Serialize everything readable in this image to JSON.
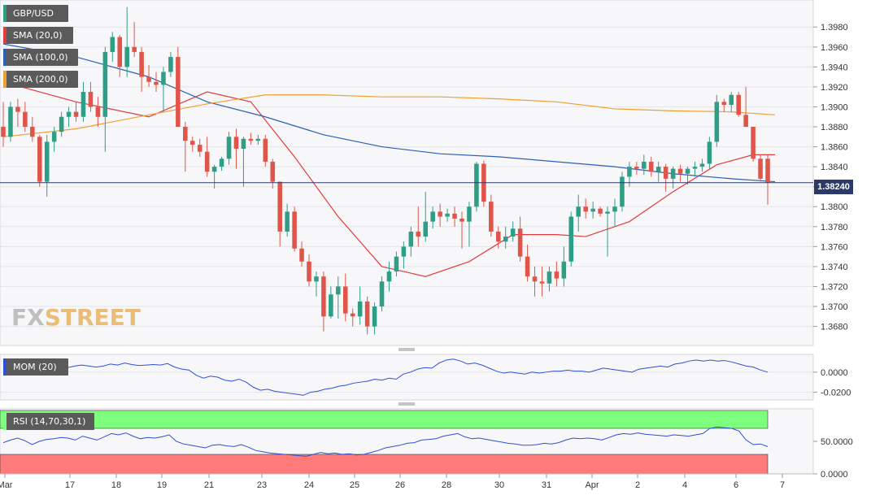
{
  "chart_data": [
    {
      "type": "candlestick",
      "panel": "price",
      "symbol": "GBP/USD",
      "ylim": [
        1.3665,
        1.4003
      ],
      "y_ticks": [
        "1.3680",
        "1.3700",
        "1.3720",
        "1.3740",
        "1.3760",
        "1.3780",
        "1.3800",
        "1.3820",
        "1.3840",
        "1.3860",
        "1.3880",
        "1.3900",
        "1.3920",
        "1.3940",
        "1.3960",
        "1.3980"
      ],
      "x_labels": [
        "Mar",
        "17",
        "18",
        "19",
        "21",
        "23",
        "24",
        "25",
        "26",
        "28",
        "30",
        "31",
        "Apr",
        "2",
        "4",
        "6",
        "7"
      ],
      "last_price_label": "1.38240",
      "last_price": 1.3824,
      "candles": [
        [
          1.388,
          1.3905,
          1.386,
          1.387
        ],
        [
          1.387,
          1.3905,
          1.3865,
          1.39
        ],
        [
          1.39,
          1.3908,
          1.388,
          1.3895
        ],
        [
          1.3895,
          1.3905,
          1.3875,
          1.388
        ],
        [
          1.388,
          1.389,
          1.3865,
          1.387
        ],
        [
          1.387,
          1.3872,
          1.382,
          1.3825
        ],
        [
          1.3825,
          1.3872,
          1.381,
          1.3865
        ],
        [
          1.3865,
          1.388,
          1.3855,
          1.3875
        ],
        [
          1.3875,
          1.3895,
          1.387,
          1.389
        ],
        [
          1.389,
          1.39,
          1.388,
          1.3895
        ],
        [
          1.3895,
          1.3905,
          1.3885,
          1.389
        ],
        [
          1.389,
          1.3925,
          1.3885,
          1.3915
        ],
        [
          1.3915,
          1.3925,
          1.3895,
          1.39
        ],
        [
          1.39,
          1.391,
          1.388,
          1.389
        ],
        [
          1.389,
          1.396,
          1.3855,
          1.3955
        ],
        [
          1.3955,
          1.3975,
          1.3945,
          1.397
        ],
        [
          1.397,
          1.3972,
          1.393,
          1.394
        ],
        [
          1.394,
          1.4,
          1.393,
          1.396
        ],
        [
          1.396,
          1.3985,
          1.395,
          1.3955
        ],
        [
          1.3955,
          1.396,
          1.3915,
          1.393
        ],
        [
          1.393,
          1.3942,
          1.392,
          1.3925
        ],
        [
          1.3925,
          1.3935,
          1.3915,
          1.3922
        ],
        [
          1.3922,
          1.394,
          1.3895,
          1.3935
        ],
        [
          1.3935,
          1.3955,
          1.393,
          1.395
        ],
        [
          1.395,
          1.396,
          1.388,
          1.388
        ],
        [
          1.388,
          1.3885,
          1.3835,
          1.3866
        ],
        [
          1.3866,
          1.387,
          1.3855,
          1.3862
        ],
        [
          1.3862,
          1.3868,
          1.385,
          1.3855
        ],
        [
          1.3855,
          1.387,
          1.383,
          1.3835
        ],
        [
          1.3835,
          1.3842,
          1.3818,
          1.384
        ],
        [
          1.384,
          1.385,
          1.3836,
          1.3848
        ],
        [
          1.3848,
          1.3875,
          1.3842,
          1.387
        ],
        [
          1.387,
          1.3878,
          1.3838,
          1.3858
        ],
        [
          1.3858,
          1.387,
          1.382,
          1.3868
        ],
        [
          1.3868,
          1.3874,
          1.3862,
          1.3866
        ],
        [
          1.3866,
          1.3872,
          1.3862,
          1.3868
        ],
        [
          1.3868,
          1.3872,
          1.384,
          1.3845
        ],
        [
          1.3845,
          1.3848,
          1.3818,
          1.3825
        ],
        [
          1.3825,
          1.3825,
          1.376,
          1.3775
        ],
        [
          1.3775,
          1.3803,
          1.377,
          1.3795
        ],
        [
          1.3795,
          1.38,
          1.3755,
          1.3758
        ],
        [
          1.3758,
          1.3765,
          1.374,
          1.3745
        ],
        [
          1.3745,
          1.3752,
          1.372,
          1.3725
        ],
        [
          1.3725,
          1.3735,
          1.371,
          1.373
        ],
        [
          1.373,
          1.3735,
          1.3675,
          1.369
        ],
        [
          1.369,
          1.372,
          1.3688,
          1.3712
        ],
        [
          1.3712,
          1.373,
          1.3688,
          1.372
        ],
        [
          1.372,
          1.3733,
          1.3685,
          1.3693
        ],
        [
          1.3693,
          1.3698,
          1.368,
          1.369
        ],
        [
          1.369,
          1.372,
          1.3682,
          1.3705
        ],
        [
          1.3705,
          1.371,
          1.3672,
          1.368
        ],
        [
          1.368,
          1.3704,
          1.3672,
          1.37
        ],
        [
          1.37,
          1.373,
          1.3695,
          1.3725
        ],
        [
          1.3725,
          1.3745,
          1.3715,
          1.3735
        ],
        [
          1.3735,
          1.3755,
          1.373,
          1.375
        ],
        [
          1.375,
          1.3765,
          1.3738,
          1.376
        ],
        [
          1.376,
          1.378,
          1.375,
          1.3775
        ],
        [
          1.3775,
          1.38,
          1.376,
          1.377
        ],
        [
          1.377,
          1.3815,
          1.3765,
          1.3785
        ],
        [
          1.3785,
          1.38,
          1.3778,
          1.3795
        ],
        [
          1.3795,
          1.3803,
          1.378,
          1.379
        ],
        [
          1.379,
          1.3798,
          1.3785,
          1.3793
        ],
        [
          1.3793,
          1.38,
          1.378,
          1.3788
        ],
        [
          1.3788,
          1.3795,
          1.3758,
          1.3785
        ],
        [
          1.3785,
          1.3805,
          1.376,
          1.38
        ],
        [
          1.38,
          1.3845,
          1.3795,
          1.3843
        ],
        [
          1.3843,
          1.3846,
          1.38,
          1.3805
        ],
        [
          1.3805,
          1.3812,
          1.377,
          1.3775
        ],
        [
          1.3775,
          1.378,
          1.3758,
          1.3765
        ],
        [
          1.3765,
          1.378,
          1.3758,
          1.377
        ],
        [
          1.377,
          1.3785,
          1.3765,
          1.3778
        ],
        [
          1.3778,
          1.379,
          1.3745,
          1.375
        ],
        [
          1.375,
          1.3762,
          1.3725,
          1.373
        ],
        [
          1.373,
          1.374,
          1.371,
          1.3725
        ],
        [
          1.3725,
          1.374,
          1.371,
          1.3723
        ],
        [
          1.3723,
          1.374,
          1.3715,
          1.3735
        ],
        [
          1.3735,
          1.3745,
          1.372,
          1.3728
        ],
        [
          1.3728,
          1.376,
          1.372,
          1.3745
        ],
        [
          1.3745,
          1.3795,
          1.374,
          1.379
        ],
        [
          1.379,
          1.3812,
          1.3775,
          1.38
        ],
        [
          1.38,
          1.3808,
          1.3788,
          1.3795
        ],
        [
          1.3795,
          1.3805,
          1.3788,
          1.3798
        ],
        [
          1.3798,
          1.38,
          1.379,
          1.3793
        ],
        [
          1.3793,
          1.38,
          1.375,
          1.3795
        ],
        [
          1.3795,
          1.3808,
          1.378,
          1.38
        ],
        [
          1.38,
          1.3835,
          1.3795,
          1.383
        ],
        [
          1.383,
          1.3845,
          1.382,
          1.384
        ],
        [
          1.384,
          1.3845,
          1.3832,
          1.3838
        ],
        [
          1.3838,
          1.3852,
          1.3832,
          1.3845
        ],
        [
          1.3845,
          1.385,
          1.383,
          1.3835
        ],
        [
          1.3835,
          1.3845,
          1.3825,
          1.384
        ],
        [
          1.384,
          1.3843,
          1.3815,
          1.3828
        ],
        [
          1.3828,
          1.384,
          1.3818,
          1.3838
        ],
        [
          1.3838,
          1.3842,
          1.3825,
          1.3833
        ],
        [
          1.3833,
          1.384,
          1.3822,
          1.3838
        ],
        [
          1.3838,
          1.3845,
          1.383,
          1.384
        ],
        [
          1.384,
          1.3848,
          1.3835,
          1.3843
        ],
        [
          1.3843,
          1.387,
          1.3838,
          1.3865
        ],
        [
          1.3865,
          1.3912,
          1.386,
          1.3905
        ],
        [
          1.3905,
          1.3908,
          1.3895,
          1.3902
        ],
        [
          1.3902,
          1.3915,
          1.3895,
          1.3912
        ],
        [
          1.3912,
          1.3915,
          1.389,
          1.3892
        ],
        [
          1.3892,
          1.392,
          1.388,
          1.388
        ],
        [
          1.388,
          1.388,
          1.3845,
          1.3848
        ],
        [
          1.3848,
          1.3852,
          1.3825,
          1.3828
        ],
        [
          1.3848,
          1.3852,
          1.3802,
          1.3824
        ]
      ]
    },
    {
      "type": "line",
      "panel": "momentum",
      "y_ticks": [
        "0.0000",
        "-0.0200"
      ],
      "ylim": [
        -0.026,
        0.016
      ],
      "values": [
        0.004,
        0.003,
        0.0045,
        0.003,
        0.002,
        0.004,
        0.005,
        0.006,
        0.005,
        0.0045,
        0.006,
        0.007,
        0.006,
        0.005,
        0.006,
        0.008,
        0.007,
        0.009,
        0.0075,
        0.0065,
        0.007,
        0.0075,
        0.007,
        0.0085,
        0.005,
        0.003,
        0.002,
        -0.003,
        -0.006,
        -0.004,
        -0.005,
        -0.008,
        -0.009,
        -0.007,
        -0.01,
        -0.015,
        -0.018,
        -0.017,
        -0.019,
        -0.02,
        -0.021,
        -0.022,
        -0.023,
        -0.02,
        -0.019,
        -0.017,
        -0.016,
        -0.014,
        -0.013,
        -0.011,
        -0.01,
        -0.009,
        -0.007,
        -0.008,
        -0.006,
        -0.007,
        -0.002,
        0.0,
        0.003,
        0.0045,
        0.004,
        0.009,
        0.012,
        0.013,
        0.011,
        0.008,
        0.009,
        0.007,
        0.004,
        0.001,
        -0.001,
        0.0,
        -0.001,
        -0.002,
        0.0,
        -0.001,
        0.0,
        0.001,
        0.001,
        0.002,
        0.001,
        0.001,
        0.0,
        0.002,
        0.004,
        0.003,
        0.002,
        0.001,
        0.0,
        0.003,
        0.004,
        0.005,
        0.006,
        0.005,
        0.008,
        0.009,
        0.011,
        0.012,
        0.011,
        0.012,
        0.011,
        0.0115,
        0.01,
        0.008,
        0.006,
        0.005,
        0.002,
        0.0
      ]
    },
    {
      "type": "line",
      "panel": "rsi",
      "y_ticks": [
        "50.0000",
        "0.0000"
      ],
      "ylim": [
        0,
        100
      ],
      "overbought": 70,
      "oversold": 30,
      "values": [
        48,
        52,
        55,
        51,
        45,
        50,
        53,
        54,
        56,
        55,
        52,
        58,
        55,
        52,
        57,
        62,
        60,
        63,
        58,
        54,
        56,
        55,
        57,
        60,
        50,
        46,
        44,
        42,
        40,
        44,
        45,
        43,
        42,
        45,
        41,
        36,
        34,
        32,
        31,
        30,
        29,
        28,
        27,
        30,
        33,
        31,
        32,
        30,
        31,
        29,
        30,
        33,
        36,
        40,
        42,
        44,
        47,
        48,
        52,
        53,
        54,
        58,
        60,
        62,
        57,
        54,
        55,
        53,
        51,
        49,
        47,
        46,
        44,
        44,
        45,
        47,
        46,
        48,
        52,
        55,
        54,
        55,
        54,
        52,
        56,
        60,
        62,
        61,
        63,
        61,
        60,
        59,
        58,
        60,
        59,
        58,
        60,
        62,
        70,
        72,
        71,
        70,
        66,
        52,
        45,
        46,
        42
      ]
    },
    {
      "type": "line",
      "panel": "price",
      "series_tag": "SMA (20,0)",
      "color": "#e03c3c",
      "points": [
        [
          0,
          1.3925
        ],
        [
          10,
          1.3905
        ],
        [
          20,
          1.389
        ],
        [
          28,
          1.3915
        ],
        [
          34,
          1.3905
        ],
        [
          40,
          1.385
        ],
        [
          46,
          1.379
        ],
        [
          52,
          1.374
        ],
        [
          58,
          1.373
        ],
        [
          64,
          1.3745
        ],
        [
          70,
          1.3772
        ],
        [
          76,
          1.3772
        ],
        [
          80,
          1.377
        ],
        [
          86,
          1.3785
        ],
        [
          92,
          1.3815
        ],
        [
          98,
          1.3842
        ],
        [
          103,
          1.3852
        ],
        [
          106,
          1.3852
        ]
      ]
    },
    {
      "type": "line",
      "panel": "price",
      "series_tag": "SMA (100,0)",
      "color": "#2d5fb3",
      "points": [
        [
          0,
          1.3963
        ],
        [
          10,
          1.395
        ],
        [
          20,
          1.393
        ],
        [
          28,
          1.3905
        ],
        [
          36,
          1.389
        ],
        [
          44,
          1.3872
        ],
        [
          52,
          1.386
        ],
        [
          60,
          1.3853
        ],
        [
          68,
          1.385
        ],
        [
          76,
          1.3845
        ],
        [
          84,
          1.384
        ],
        [
          92,
          1.3833
        ],
        [
          100,
          1.3828
        ],
        [
          106,
          1.3825
        ]
      ]
    },
    {
      "type": "line",
      "panel": "price",
      "series_tag": "SMA (200,0)",
      "color": "#f0a030",
      "points": [
        [
          0,
          1.387
        ],
        [
          10,
          1.3878
        ],
        [
          20,
          1.3892
        ],
        [
          28,
          1.3903
        ],
        [
          36,
          1.3912
        ],
        [
          44,
          1.3912
        ],
        [
          52,
          1.391
        ],
        [
          60,
          1.391
        ],
        [
          68,
          1.3908
        ],
        [
          76,
          1.3905
        ],
        [
          84,
          1.3898
        ],
        [
          92,
          1.3896
        ],
        [
          100,
          1.3895
        ],
        [
          106,
          1.3892
        ]
      ]
    }
  ],
  "legend": {
    "pair": "GBP/USD",
    "sma20": "SMA (20,0)",
    "sma100": "SMA (100,0)",
    "sma200": "SMA (200,0)",
    "mom": "MOM (20)",
    "rsi": "RSI (14,70,30,1)"
  },
  "logo": {
    "fx": "FX",
    "street": "STREET"
  },
  "colors": {
    "bull": "#2e9e86",
    "bear": "#e0554a",
    "rsi_over": "#7dff7d",
    "rsi_under": "#ff7a7a"
  }
}
